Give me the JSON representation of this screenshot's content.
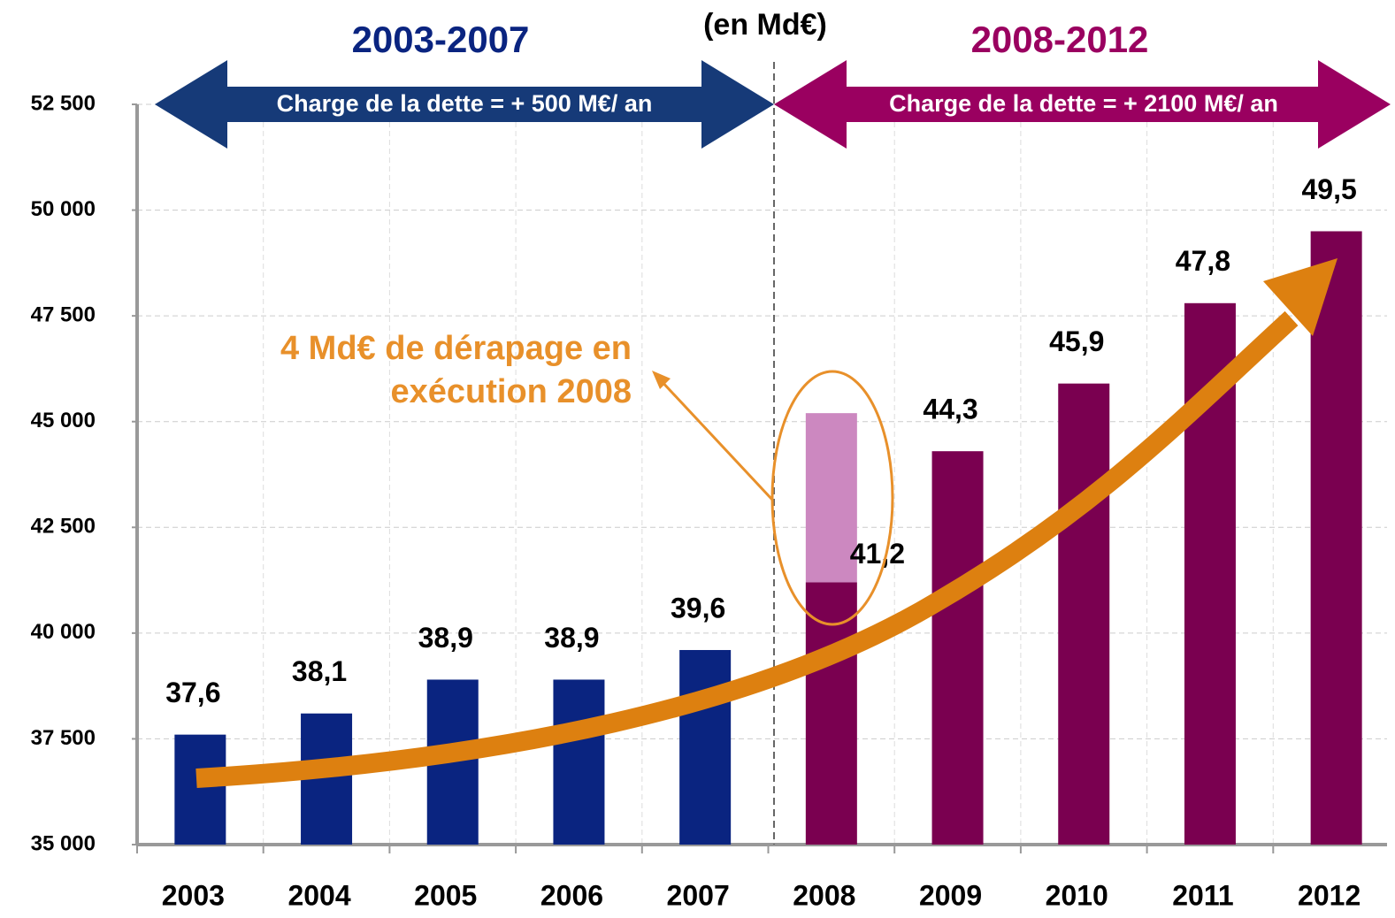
{
  "chart_data": {
    "type": "bar",
    "subtitle": "(en Md€)",
    "categories": [
      "2003",
      "2004",
      "2005",
      "2006",
      "2007",
      "2008",
      "2009",
      "2010",
      "2011",
      "2012"
    ],
    "values": [
      37600,
      38100,
      38900,
      38900,
      39600,
      41200,
      44300,
      45900,
      47800,
      49500
    ],
    "value_labels": [
      "37,6",
      "38,1",
      "38,9",
      "38,9",
      "39,6",
      "41,2",
      "44,3",
      "45,9",
      "47,8",
      "49,5"
    ],
    "colors": [
      "#0a2480",
      "#0a2480",
      "#0a2480",
      "#0a2480",
      "#0a2480",
      "#7a0050",
      "#7a0050",
      "#7a0050",
      "#7a0050",
      "#7a0050"
    ],
    "overrun": {
      "values": [
        null,
        null,
        null,
        null,
        null,
        4000,
        null,
        null,
        null,
        null
      ],
      "color": "#cc88c0"
    },
    "ylim": [
      35000,
      52500
    ],
    "yticks": [
      {
        "value": 35000,
        "label": "35 000"
      },
      {
        "value": 37500,
        "label": "37 500"
      },
      {
        "value": 40000,
        "label": "40 000"
      },
      {
        "value": 42500,
        "label": "42 500"
      },
      {
        "value": 45000,
        "label": "45 000"
      },
      {
        "value": 47500,
        "label": "47 500"
      },
      {
        "value": 50000,
        "label": "50 000"
      },
      {
        "value": 52500,
        "label": "52 500"
      }
    ],
    "grid": true,
    "periods": [
      {
        "label": "2003-2007",
        "note": "Charge de la dette = + 500 M€/ an",
        "color": "#0a2480",
        "arrow_color": "#163a78"
      },
      {
        "label": "2008-2012",
        "note": "Charge de la dette = + 2100 M€/ an",
        "color": "#9a0060",
        "arrow_color": "#9a0060"
      }
    ],
    "annotation": {
      "lines": [
        "4 Md€ de dérapage en",
        "exécution 2008"
      ],
      "color": "#e8902a"
    },
    "trend_color": "#dd8010"
  }
}
